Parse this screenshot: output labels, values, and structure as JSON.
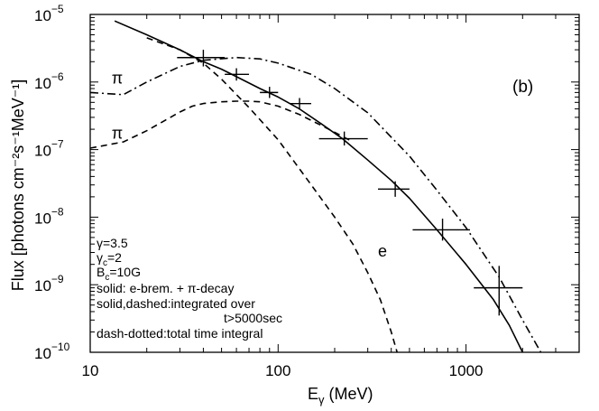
{
  "chart_data": {
    "type": "line",
    "panel_label": "(b)",
    "xlabel_main": "E",
    "xlabel_sub": "γ",
    "xlabel_unit": " (MeV)",
    "ylabel": "Flux [photons cm⁻²s⁻¹MeV⁻¹]",
    "xscale": "log",
    "yscale": "log",
    "xlim": [
      10,
      4000
    ],
    "ylim": [
      1e-10,
      1e-05
    ],
    "x_ticks": [
      {
        "value": 10,
        "label": "10"
      },
      {
        "value": 100,
        "label": "100"
      },
      {
        "value": 1000,
        "label": "1000"
      }
    ],
    "y_ticks": [
      {
        "value": 1e-10,
        "mantissa": "10",
        "exponent": "−10"
      },
      {
        "value": 1e-09,
        "mantissa": "10",
        "exponent": "−9"
      },
      {
        "value": 1e-08,
        "mantissa": "10",
        "exponent": "−8"
      },
      {
        "value": 1e-07,
        "mantissa": "10",
        "exponent": "−7"
      },
      {
        "value": 1e-06,
        "mantissa": "10",
        "exponent": "−6"
      },
      {
        "value": 1e-05,
        "mantissa": "10",
        "exponent": "−5"
      }
    ],
    "series": [
      {
        "name": "solid: e-brem. + π-decay",
        "style": "solid",
        "x": [
          13.5,
          20,
          30,
          40,
          50,
          60,
          80,
          100,
          130,
          170,
          220,
          300,
          400,
          500,
          700,
          1000,
          1400,
          1700,
          2000
        ],
        "y": [
          8e-06,
          5e-06,
          3e-06,
          2e-06,
          1.55e-06,
          1.2e-06,
          8e-07,
          6e-07,
          4e-07,
          2.4e-07,
          1.45e-07,
          7e-08,
          3.5e-08,
          1.9e-08,
          6.5e-09,
          2e-09,
          6e-10,
          2.5e-10,
          1e-10
        ]
      },
      {
        "name": "dashed: integrated over t>5000sec (e)",
        "style": "dashed",
        "x": [
          20,
          30,
          40,
          50,
          70,
          100,
          150,
          200,
          250,
          300,
          350,
          400,
          430
        ],
        "y": [
          4.5e-06,
          3e-06,
          1.9e-06,
          1.1e-06,
          4.2e-07,
          1.4e-07,
          3e-08,
          1e-08,
          4e-09,
          1.5e-09,
          6e-10,
          2e-10,
          1e-10
        ]
      },
      {
        "name": "dashed: integrated over t>5000sec (π)",
        "style": "dashed",
        "x": [
          10,
          15,
          20,
          25,
          30,
          35,
          40,
          50,
          60,
          70,
          80,
          100,
          130,
          180,
          250
        ],
        "y": [
          1.05e-07,
          1.3e-07,
          1.9e-07,
          2.7e-07,
          3.6e-07,
          4.4e-07,
          4.8e-07,
          5.1e-07,
          5.2e-07,
          5.2e-07,
          5.1e-07,
          4.4e-07,
          3.3e-07,
          2.1e-07,
          1.3e-07
        ]
      },
      {
        "name": "dash-dotted: total time integral",
        "style": "dashdot",
        "x": [
          10,
          15,
          20,
          30,
          40,
          60,
          80,
          100,
          150,
          200,
          300,
          500,
          700,
          1000,
          1500,
          2000,
          2500
        ],
        "y": [
          7e-07,
          6.5e-07,
          1e-06,
          1.7e-06,
          2.1e-06,
          2.3e-06,
          2.2e-06,
          1.9e-06,
          1.3e-06,
          8e-07,
          3.5e-07,
          8e-08,
          2.5e-08,
          7e-09,
          1.3e-09,
          3e-10,
          1e-10
        ]
      }
    ],
    "data_points": [
      {
        "x": 40,
        "y": 2.3e-06,
        "x_low": 29,
        "x_high": 52,
        "y_low": 1.7e-06,
        "y_high": 3e-06
      },
      {
        "x": 60,
        "y": 1.3e-06,
        "x_low": 52,
        "x_high": 70,
        "y_low": 1.05e-06,
        "y_high": 1.6e-06
      },
      {
        "x": 90,
        "y": 7e-07,
        "x_low": 80,
        "x_high": 100,
        "y_low": 5.8e-07,
        "y_high": 8.5e-07
      },
      {
        "x": 130,
        "y": 4.8e-07,
        "x_low": 115,
        "x_high": 150,
        "y_low": 3.9e-07,
        "y_high": 5.8e-07
      },
      {
        "x": 225,
        "y": 1.45e-07,
        "x_low": 165,
        "x_high": 300,
        "y_low": 1.15e-07,
        "y_high": 1.85e-07
      },
      {
        "x": 420,
        "y": 2.6e-08,
        "x_low": 340,
        "x_high": 500,
        "y_low": 2e-08,
        "y_high": 3.4e-08
      },
      {
        "x": 750,
        "y": 6.5e-09,
        "x_low": 520,
        "x_high": 1050,
        "y_low": 4.5e-09,
        "y_high": 9.5e-09
      },
      {
        "x": 1500,
        "y": 9e-10,
        "x_low": 1100,
        "x_high": 2000,
        "y_low": 3.5e-10,
        "y_high": 1.9e-09
      }
    ],
    "annotations": [
      {
        "text": "π",
        "x": 13,
        "y": 9.5e-07
      },
      {
        "text": "π",
        "x": 13,
        "y": 1.45e-07
      },
      {
        "text": "e",
        "x": 340,
        "y": 2.6e-09
      }
    ],
    "legend_text": [
      "γ=3.5",
      "γc=2",
      "Bc=10G",
      "solid: e-brem. + π-decay",
      "solid,dashed:integrated over",
      "t>5000sec",
      "dash-dotted:total time integral"
    ]
  }
}
